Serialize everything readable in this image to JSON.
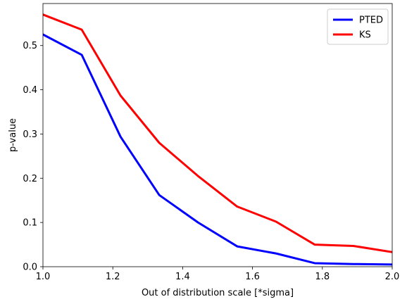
{
  "chart_data": {
    "type": "line",
    "title": "",
    "xlabel": "Out of distribution scale [*sigma]",
    "ylabel": "p-value",
    "xlim": [
      1.0,
      2.0
    ],
    "ylim": [
      0.0,
      0.595
    ],
    "x_ticks": [
      "1.0",
      "1.2",
      "1.4",
      "1.6",
      "1.8",
      "2.0"
    ],
    "y_ticks": [
      "0.0",
      "0.1",
      "0.2",
      "0.3",
      "0.4",
      "0.5"
    ],
    "grid": false,
    "legend_position": "top-right",
    "x": [
      1.0,
      1.111,
      1.222,
      1.333,
      1.444,
      1.556,
      1.667,
      1.778,
      1.889,
      2.0
    ],
    "series": [
      {
        "name": "PTED",
        "color": "#0000ff",
        "values": [
          0.525,
          0.479,
          0.294,
          0.162,
          0.1,
          0.046,
          0.03,
          0.008,
          0.006,
          0.005
        ]
      },
      {
        "name": "KS",
        "color": "#ff0000",
        "values": [
          0.57,
          0.536,
          0.387,
          0.28,
          0.205,
          0.136,
          0.102,
          0.05,
          0.047,
          0.033
        ]
      }
    ]
  }
}
